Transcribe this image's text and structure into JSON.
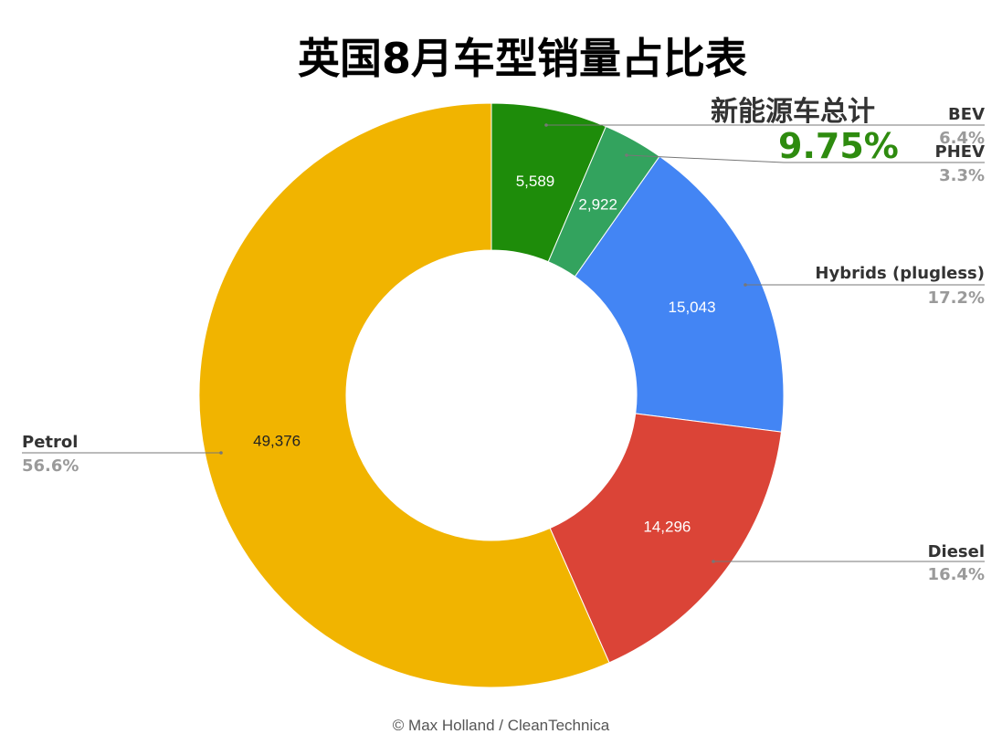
{
  "title": "英国8月车型销量占比表",
  "annotation": {
    "caption": "新能源车总计",
    "total": "9.75%"
  },
  "credit": "© Max Holland / CleanTechnica",
  "chart_data": {
    "type": "pie",
    "donut": true,
    "slices": [
      {
        "label": "BEV",
        "value": 5589,
        "value_label": "5,589",
        "percent": "6.4%",
        "color": "#1e8c0a"
      },
      {
        "label": "PHEV",
        "value": 2922,
        "value_label": "2,922",
        "percent": "3.3%",
        "color": "#33a35e"
      },
      {
        "label": "Hybrids (plugless)",
        "value": 15043,
        "value_label": "15,043",
        "percent": "17.2%",
        "color": "#4385f4"
      },
      {
        "label": "Diesel",
        "value": 14296,
        "value_label": "14,296",
        "percent": "16.4%",
        "color": "#db4437"
      },
      {
        "label": "Petrol",
        "value": 49376,
        "value_label": "49,376",
        "percent": "56.6%",
        "color": "#f1b400"
      }
    ]
  }
}
